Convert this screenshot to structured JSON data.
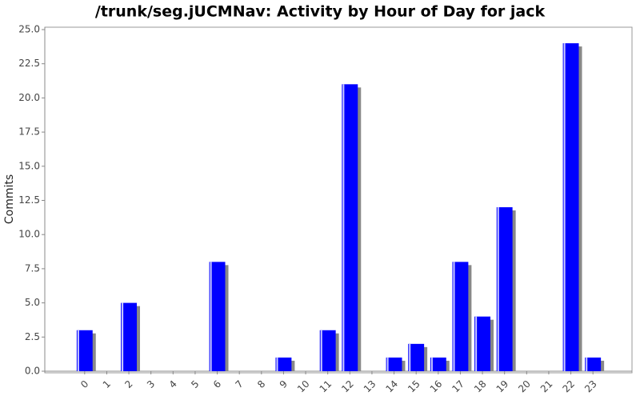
{
  "chart_data": {
    "type": "bar",
    "title": "/trunk/seg.jUCMNav: Activity by Hour of Day for jack",
    "y_label": "Commits",
    "categories": [
      "0",
      "1",
      "2",
      "3",
      "4",
      "5",
      "6",
      "7",
      "8",
      "9",
      "10",
      "11",
      "12",
      "13",
      "14",
      "15",
      "16",
      "17",
      "18",
      "19",
      "20",
      "21",
      "22",
      "23"
    ],
    "values": [
      3,
      0,
      5,
      0,
      0,
      0,
      8,
      0,
      0,
      1,
      0,
      3,
      21,
      0,
      1,
      2,
      1,
      8,
      4,
      12,
      0,
      0,
      24,
      1
    ],
    "color": "#0000ff",
    "ylim": [
      0,
      25
    ],
    "yticks": [
      {
        "value": 0,
        "label": "0.0"
      },
      2.5,
      {
        "value": 5,
        "label": "5.0"
      },
      7.5,
      {
        "value": 10,
        "label": "10.0"
      },
      12.5,
      {
        "value": 15,
        "label": "15.0"
      },
      17.5,
      {
        "value": 20,
        "label": "20.0"
      },
      22.5,
      {
        "value": 25,
        "label": "25.0"
      }
    ],
    "grid": false
  }
}
